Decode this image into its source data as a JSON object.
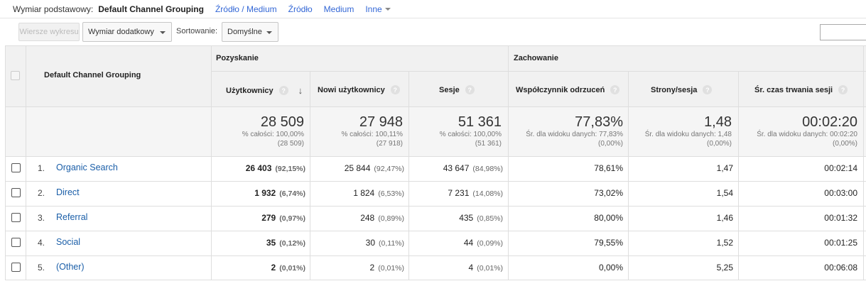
{
  "dimbar": {
    "label": "Wymiar podstawowy:",
    "active": "Default Channel Grouping",
    "links": [
      "Źródło / Medium",
      "Źródło",
      "Medium"
    ],
    "more": "Inne"
  },
  "toolbar": {
    "plot_rows": "Wiersze wykresu",
    "secondary_dim": "Wymiar dodatkowy",
    "sort_label": "Sortowanie:",
    "sort_value": "Domyślne"
  },
  "table": {
    "dim_header": "Default Channel Grouping",
    "groups": {
      "acquisition": "Pozyskanie",
      "behavior": "Zachowanie"
    },
    "columns": {
      "users": "Użytkownicy",
      "new_users": "Nowi użytkownicy",
      "sessions": "Sesje",
      "bounce": "Współczynnik odrzuceń",
      "pages": "Strony/sesja",
      "duration": "Śr. czas trwania sesji"
    },
    "totals": {
      "users": {
        "value": "28 509",
        "line1": "% całości: 100,00%",
        "line2": "(28 509)"
      },
      "new_users": {
        "value": "27 948",
        "line1": "% całości: 100,11%",
        "line2": "(27 918)"
      },
      "sessions": {
        "value": "51 361",
        "line1": "% całości: 100,00%",
        "line2": "(51 361)"
      },
      "bounce": {
        "value": "77,83%",
        "line1": "Śr. dla widoku danych: 77,83%",
        "line2": "(0,00%)"
      },
      "pages": {
        "value": "1,48",
        "line1": "Śr. dla widoku danych: 1,48",
        "line2": "(0,00%)"
      },
      "duration": {
        "value": "00:02:20",
        "line1": "Śr. dla widoku danych: 00:02:20",
        "line2": "(0,00%)"
      }
    },
    "rows": [
      {
        "idx": "1.",
        "name": "Organic Search",
        "users": "26 403",
        "users_pct": "(92,15%)",
        "new_users": "25 844",
        "new_users_pct": "(92,47%)",
        "sessions": "43 647",
        "sessions_pct": "(84,98%)",
        "bounce": "78,61%",
        "pages": "1,47",
        "duration": "00:02:14"
      },
      {
        "idx": "2.",
        "name": "Direct",
        "users": "1 932",
        "users_pct": "(6,74%)",
        "new_users": "1 824",
        "new_users_pct": "(6,53%)",
        "sessions": "7 231",
        "sessions_pct": "(14,08%)",
        "bounce": "73,02%",
        "pages": "1,54",
        "duration": "00:03:00"
      },
      {
        "idx": "3.",
        "name": "Referral",
        "users": "279",
        "users_pct": "(0,97%)",
        "new_users": "248",
        "new_users_pct": "(0,89%)",
        "sessions": "435",
        "sessions_pct": "(0,85%)",
        "bounce": "80,00%",
        "pages": "1,46",
        "duration": "00:01:32"
      },
      {
        "idx": "4.",
        "name": "Social",
        "users": "35",
        "users_pct": "(0,12%)",
        "new_users": "30",
        "new_users_pct": "(0,11%)",
        "sessions": "44",
        "sessions_pct": "(0,09%)",
        "bounce": "79,55%",
        "pages": "1,52",
        "duration": "00:01:25"
      },
      {
        "idx": "5.",
        "name": "(Other)",
        "users": "2",
        "users_pct": "(0,01%)",
        "new_users": "2",
        "new_users_pct": "(0,01%)",
        "sessions": "4",
        "sessions_pct": "(0,01%)",
        "bounce": "0,00%",
        "pages": "5,25",
        "duration": "00:06:08"
      }
    ]
  },
  "colors": {
    "link": "#1a5ea8",
    "accent_link": "#3367d6",
    "header_bg": "#f1f1f1"
  }
}
